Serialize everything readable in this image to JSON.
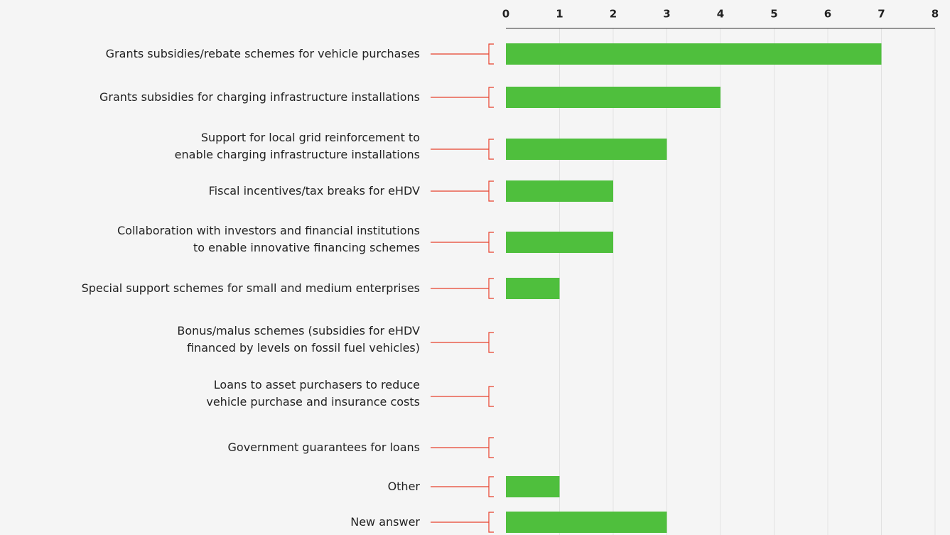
{
  "chart_data": {
    "type": "bar",
    "orientation": "horizontal",
    "categories": [
      [
        "Grants subsidies/rebate schemes for vehicle purchases"
      ],
      [
        "Grants subsidies for charging infrastructure installations"
      ],
      [
        "Support for local grid reinforcement to",
        "enable charging infrastructure installations"
      ],
      [
        "Fiscal incentives/tax breaks for eHDV"
      ],
      [
        "Collaboration with investors and financial institutions",
        "to enable innovative financing schemes"
      ],
      [
        "Special support schemes for small and medium enterprises"
      ],
      [
        "Bonus/malus schemes (subsidies for eHDV",
        "financed by levels on fossil fuel vehicles)"
      ],
      [
        "Loans to asset purchasers to reduce",
        "vehicle purchase and insurance costs"
      ],
      [
        "Government guarantees for loans"
      ],
      [
        "Other"
      ],
      [
        "New answer"
      ]
    ],
    "values": [
      7,
      4,
      3,
      2,
      2,
      1,
      0,
      0,
      0,
      1,
      3
    ],
    "color": "#4fbf3d",
    "xlim": [
      0,
      8
    ],
    "xticks": [
      0,
      1,
      2,
      3,
      4,
      5,
      6,
      7,
      8
    ],
    "grid": true
  }
}
